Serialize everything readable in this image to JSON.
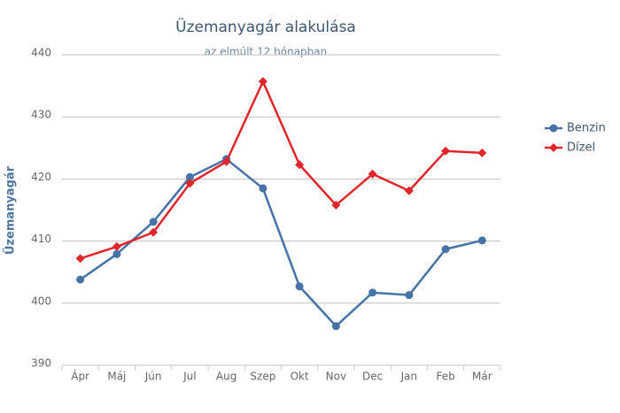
{
  "chart_data": {
    "type": "line",
    "title": "Üzemanyagár alakulása",
    "subtitle": "az elmúlt 12 hónapban",
    "y_label": "Üzemanyagár",
    "categories": [
      "Ápr",
      "Máj",
      "Jún",
      "Jul",
      "Aug",
      "Szep",
      "Okt",
      "Nov",
      "Dec",
      "Jan",
      "Feb",
      "Már"
    ],
    "series": [
      {
        "name": "Benzin",
        "color": "#4572a7",
        "marker": "circle",
        "values": [
          403.8,
          407.9,
          413.1,
          420.3,
          423.2,
          418.5,
          402.7,
          396.3,
          401.7,
          401.3,
          408.7,
          410.1
        ]
      },
      {
        "name": "Dízel",
        "color": "#e0262a",
        "marker": "diamond",
        "values": [
          407.2,
          409.1,
          411.4,
          419.3,
          422.8,
          435.7,
          422.3,
          415.8,
          420.8,
          418.1,
          424.5,
          424.2
        ]
      }
    ],
    "ylim": [
      390,
      440
    ],
    "yticks": [
      390,
      400,
      410,
      420,
      430,
      440
    ],
    "grid": true,
    "legend": "right"
  }
}
